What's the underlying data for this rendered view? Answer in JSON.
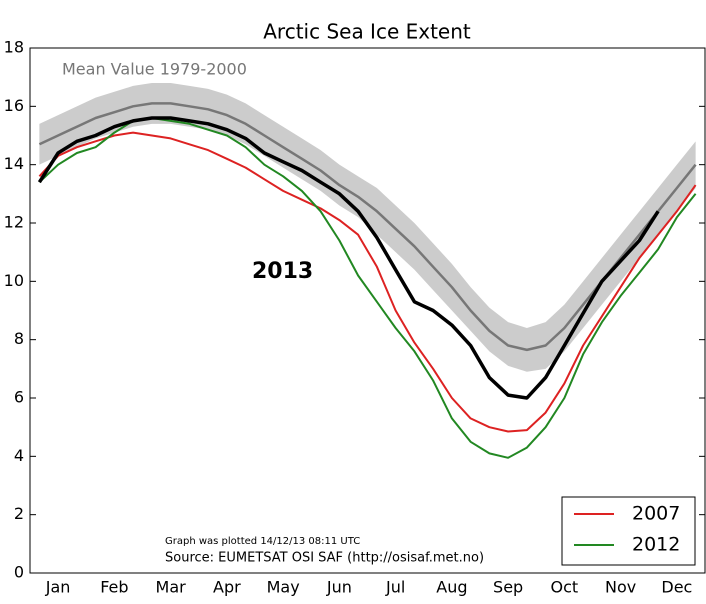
{
  "chart_data": {
    "type": "line",
    "title": "Arctic Sea Ice Extent",
    "categories": [
      null,
      "Jan",
      null,
      null,
      "Feb",
      null,
      null,
      "Mar",
      null,
      null,
      "Apr",
      null,
      null,
      "May",
      null,
      null,
      "Jun",
      null,
      null,
      "Jul",
      null,
      null,
      "Aug",
      null,
      null,
      "Sep",
      null,
      null,
      "Oct",
      null,
      null,
      "Nov",
      null,
      null,
      "Dec",
      null
    ],
    "ylim": [
      0,
      18
    ],
    "yticks": [
      0,
      2,
      4,
      6,
      8,
      10,
      12,
      14,
      16,
      18
    ],
    "band_color": "#cccccc",
    "band_low": [
      14.0,
      14.3,
      14.6,
      14.9,
      15.1,
      15.3,
      15.4,
      15.4,
      15.3,
      15.2,
      15.0,
      14.7,
      14.3,
      13.9,
      13.5,
      13.1,
      12.6,
      12.2,
      11.6,
      11.0,
      10.4,
      9.7,
      9.0,
      8.3,
      7.6,
      7.1,
      6.9,
      7.0,
      7.6,
      8.4,
      9.2,
      10.0,
      10.8,
      11.6,
      12.4,
      13.2
    ],
    "band_high": [
      15.4,
      15.7,
      16.0,
      16.3,
      16.5,
      16.7,
      16.8,
      16.8,
      16.7,
      16.6,
      16.4,
      16.1,
      15.7,
      15.3,
      14.9,
      14.5,
      14.0,
      13.6,
      13.2,
      12.6,
      12.0,
      11.3,
      10.6,
      9.8,
      9.1,
      8.6,
      8.4,
      8.6,
      9.2,
      10.0,
      10.8,
      11.6,
      12.4,
      13.2,
      14.0,
      14.8
    ],
    "series": [
      {
        "name": "Mean Value 1979-2000",
        "in_legend": false,
        "color": "#777777",
        "width": 2.5,
        "values": [
          14.7,
          15.0,
          15.3,
          15.6,
          15.8,
          16.0,
          16.1,
          16.1,
          16.0,
          15.9,
          15.7,
          15.4,
          15.0,
          14.6,
          14.2,
          13.8,
          13.3,
          12.9,
          12.4,
          11.8,
          11.2,
          10.5,
          9.8,
          9.0,
          8.3,
          7.8,
          7.65,
          7.8,
          8.4,
          9.2,
          10.0,
          10.8,
          11.6,
          12.4,
          13.2,
          14.0
        ]
      },
      {
        "name": "2007",
        "in_legend": true,
        "color": "#dd2222",
        "width": 2,
        "values": [
          13.6,
          14.3,
          14.6,
          14.8,
          15.0,
          15.1,
          15.0,
          14.9,
          14.7,
          14.5,
          14.2,
          13.9,
          13.5,
          13.1,
          12.8,
          12.5,
          12.1,
          11.6,
          10.5,
          9.0,
          7.9,
          7.0,
          6.0,
          5.3,
          5.0,
          4.85,
          4.9,
          5.5,
          6.5,
          7.8,
          8.8,
          9.8,
          10.8,
          11.6,
          12.4,
          13.3
        ]
      },
      {
        "name": "2012",
        "in_legend": true,
        "color": "#228822",
        "width": 2,
        "values": [
          13.4,
          14.0,
          14.4,
          14.6,
          15.1,
          15.5,
          15.6,
          15.5,
          15.4,
          15.2,
          15.0,
          14.6,
          14.0,
          13.6,
          13.1,
          12.4,
          11.4,
          10.2,
          9.3,
          8.4,
          7.6,
          6.6,
          5.3,
          4.5,
          4.1,
          3.95,
          4.3,
          5.0,
          6.0,
          7.5,
          8.6,
          9.5,
          10.3,
          11.1,
          12.2,
          13.0
        ]
      },
      {
        "name": "2013",
        "in_legend": false,
        "color": "#000000",
        "width": 3.5,
        "values": [
          13.4,
          14.4,
          14.8,
          15.0,
          15.3,
          15.5,
          15.6,
          15.6,
          15.5,
          15.4,
          15.2,
          14.9,
          14.4,
          14.1,
          13.8,
          13.4,
          13.0,
          12.4,
          11.5,
          10.4,
          9.3,
          9.0,
          8.5,
          7.8,
          6.7,
          6.1,
          6.0,
          6.7,
          7.8,
          8.9,
          10.0,
          10.7,
          11.4,
          12.4,
          null,
          null
        ]
      }
    ],
    "legend": "lower right",
    "annotations": [
      "Graph was plotted 14/12/13 08:11 UTC",
      "Source: EUMETSAT OSI SAF (http://osisaf.met.no)"
    ]
  }
}
